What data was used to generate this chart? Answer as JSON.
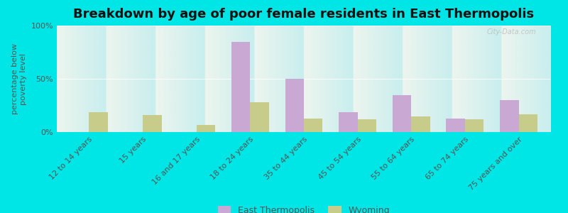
{
  "title": "Breakdown by age of poor female residents in East Thermopolis",
  "ylabel": "percentage below\npoverty level",
  "categories": [
    "12 to 14 years",
    "15 years",
    "16 and 17 years",
    "18 to 24 years",
    "35 to 44 years",
    "45 to 54 years",
    "55 to 64 years",
    "65 to 74 years",
    "75 years and over"
  ],
  "east_thermopolis": [
    0,
    0,
    0,
    85,
    50,
    19,
    35,
    13,
    30
  ],
  "wyoming": [
    19,
    16,
    7,
    28,
    13,
    12,
    15,
    12,
    17
  ],
  "bar_color_et": "#c9a8d4",
  "bar_color_wy": "#c8cc8a",
  "outer_bg": "#00e5e5",
  "plot_bg_top": "#edf5ee",
  "plot_bg_bottom": "#c8eeee",
  "ylim": [
    0,
    100
  ],
  "ytick_labels": [
    "0%",
    "50%",
    "100%"
  ],
  "bar_width": 0.35,
  "legend_et": "East Thermopolis",
  "legend_wy": "Wyoming",
  "title_fontsize": 13,
  "label_fontsize": 8,
  "tick_fontsize": 8,
  "watermark": "City-Data.com"
}
